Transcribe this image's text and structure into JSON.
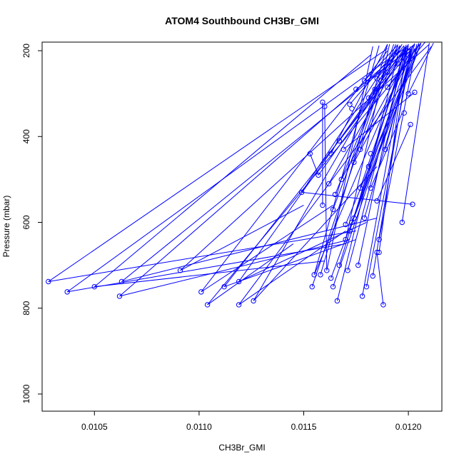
{
  "chart_data": {
    "type": "line",
    "title": "ATOM4 Southbound CH3Br_GMI",
    "xlabel": "CH3Br_GMI",
    "ylabel": "Pressure (mbar)",
    "xlim": [
      0.01025,
      0.01216
    ],
    "ylim": [
      1040,
      180
    ],
    "y_inverted": true,
    "x_ticks": [
      0.0105,
      0.011,
      0.0115,
      0.012
    ],
    "x_tick_labels": [
      "0.0105",
      "0.0110",
      "0.0115",
      "0.0120"
    ],
    "y_ticks": [
      200,
      400,
      600,
      800,
      1000
    ],
    "y_tick_labels": [
      "200",
      "400",
      "600",
      "800",
      "1000"
    ],
    "series_color": "#0000ff",
    "grid": false,
    "points": [
      [
        0.01028,
        738
      ],
      [
        0.01037,
        762
      ],
      [
        0.0105,
        750
      ],
      [
        0.01063,
        738
      ],
      [
        0.01062,
        772
      ],
      [
        0.01091,
        712
      ],
      [
        0.01101,
        762
      ],
      [
        0.01104,
        792
      ],
      [
        0.01112,
        750
      ],
      [
        0.01119,
        738
      ],
      [
        0.01119,
        792
      ],
      [
        0.01126,
        783
      ],
      [
        0.01149,
        530
      ],
      [
        0.01153,
        440
      ],
      [
        0.01154,
        750
      ],
      [
        0.01155,
        722
      ],
      [
        0.01157,
        490
      ],
      [
        0.01158,
        722
      ],
      [
        0.01159,
        560
      ],
      [
        0.01159,
        320
      ],
      [
        0.0116,
        330
      ],
      [
        0.01161,
        712
      ],
      [
        0.01162,
        510
      ],
      [
        0.01163,
        730
      ],
      [
        0.01163,
        440
      ],
      [
        0.01164,
        570
      ],
      [
        0.01164,
        750
      ],
      [
        0.01165,
        535
      ],
      [
        0.01166,
        783
      ],
      [
        0.01167,
        700
      ],
      [
        0.01167,
        410
      ],
      [
        0.01168,
        500
      ],
      [
        0.01169,
        430
      ],
      [
        0.0117,
        605
      ],
      [
        0.0117,
        640
      ],
      [
        0.01171,
        712
      ],
      [
        0.01172,
        620
      ],
      [
        0.01172,
        325
      ],
      [
        0.01173,
        600
      ],
      [
        0.01173,
        335
      ],
      [
        0.01174,
        460
      ],
      [
        0.01174,
        590
      ],
      [
        0.01175,
        290
      ],
      [
        0.01176,
        700
      ],
      [
        0.01177,
        520
      ],
      [
        0.01177,
        430
      ],
      [
        0.01178,
        772
      ],
      [
        0.01179,
        590
      ],
      [
        0.01179,
        270
      ],
      [
        0.0118,
        750
      ],
      [
        0.01181,
        310
      ],
      [
        0.01181,
        470
      ],
      [
        0.01182,
        440
      ],
      [
        0.01182,
        520
      ],
      [
        0.01183,
        725
      ],
      [
        0.01184,
        290
      ],
      [
        0.01185,
        550
      ],
      [
        0.01185,
        670
      ],
      [
        0.01186,
        670
      ],
      [
        0.01186,
        640
      ],
      [
        0.01187,
        270
      ],
      [
        0.01188,
        792
      ],
      [
        0.01189,
        430
      ],
      [
        0.0119,
        285
      ],
      [
        0.01197,
        600
      ],
      [
        0.01198,
        345
      ],
      [
        0.012,
        300
      ],
      [
        0.01201,
        372
      ],
      [
        0.01202,
        558
      ],
      [
        0.01203,
        297
      ],
      [
        0.012,
        210
      ],
      [
        0.01195,
        230
      ],
      [
        0.0119,
        250
      ],
      [
        0.01185,
        265
      ]
    ],
    "segments": [
      [
        0.01028,
        738,
        0.0119,
        195
      ],
      [
        0.01028,
        738,
        0.01175,
        620
      ],
      [
        0.01037,
        762,
        0.01196,
        200
      ],
      [
        0.01037,
        762,
        0.0117,
        650
      ],
      [
        0.0105,
        750,
        0.01182,
        210
      ],
      [
        0.0105,
        750,
        0.0116,
        690
      ],
      [
        0.01063,
        738,
        0.01203,
        185
      ],
      [
        0.01063,
        738,
        0.01185,
        590
      ],
      [
        0.01062,
        772,
        0.01199,
        190
      ],
      [
        0.01062,
        772,
        0.01172,
        640
      ],
      [
        0.01091,
        712,
        0.0121,
        185
      ],
      [
        0.01091,
        712,
        0.0115,
        560
      ],
      [
        0.01101,
        762,
        0.0119,
        200
      ],
      [
        0.01101,
        762,
        0.01164,
        560
      ],
      [
        0.01104,
        792,
        0.01208,
        180
      ],
      [
        0.01104,
        792,
        0.01145,
        650
      ],
      [
        0.01112,
        750,
        0.01202,
        192
      ],
      [
        0.01112,
        750,
        0.01175,
        640
      ],
      [
        0.01119,
        738,
        0.01198,
        195
      ],
      [
        0.01119,
        738,
        0.0118,
        600
      ],
      [
        0.01119,
        792,
        0.01211,
        190
      ],
      [
        0.01119,
        792,
        0.0117,
        620
      ],
      [
        0.01126,
        783,
        0.01197,
        185
      ],
      [
        0.01126,
        783,
        0.01185,
        470
      ],
      [
        0.01149,
        530,
        0.01195,
        190
      ],
      [
        0.01149,
        530,
        0.01202,
        558
      ],
      [
        0.01153,
        440,
        0.01157,
        490
      ],
      [
        0.01154,
        750,
        0.01193,
        185
      ],
      [
        0.01155,
        722,
        0.012,
        210
      ],
      [
        0.01157,
        490,
        0.012,
        195
      ],
      [
        0.01159,
        320,
        0.01159,
        560
      ],
      [
        0.0116,
        330,
        0.01161,
        712
      ],
      [
        0.01162,
        510,
        0.01199,
        190
      ],
      [
        0.01163,
        730,
        0.01205,
        182
      ],
      [
        0.01163,
        440,
        0.0119,
        185
      ],
      [
        0.01164,
        570,
        0.01187,
        270
      ],
      [
        0.01164,
        750,
        0.01203,
        195
      ],
      [
        0.01166,
        783,
        0.01196,
        188
      ],
      [
        0.01167,
        700,
        0.01199,
        190
      ],
      [
        0.01167,
        410,
        0.012,
        190
      ],
      [
        0.01168,
        500,
        0.01203,
        183
      ],
      [
        0.01169,
        430,
        0.01203,
        297
      ],
      [
        0.0117,
        605,
        0.01206,
        182
      ],
      [
        0.01171,
        712,
        0.01199,
        196
      ],
      [
        0.01172,
        325,
        0.01196,
        190
      ],
      [
        0.01173,
        600,
        0.01202,
        190
      ],
      [
        0.01174,
        460,
        0.01204,
        190
      ],
      [
        0.01175,
        290,
        0.01201,
        195
      ],
      [
        0.01176,
        700,
        0.01198,
        190
      ],
      [
        0.01177,
        520,
        0.012,
        190
      ],
      [
        0.01178,
        772,
        0.012,
        185
      ],
      [
        0.01179,
        590,
        0.01203,
        185
      ],
      [
        0.0118,
        750,
        0.01202,
        188
      ],
      [
        0.01181,
        470,
        0.01205,
        185
      ],
      [
        0.01182,
        520,
        0.01197,
        345
      ],
      [
        0.01183,
        725,
        0.01201,
        190
      ],
      [
        0.01185,
        550,
        0.01201,
        372
      ],
      [
        0.01186,
        640,
        0.01204,
        185
      ],
      [
        0.01188,
        792,
        0.01185,
        670
      ],
      [
        0.01189,
        430,
        0.01202,
        188
      ],
      [
        0.01186,
        670,
        0.01199,
        190
      ],
      [
        0.01197,
        600,
        0.0121,
        182
      ],
      [
        0.0119,
        285,
        0.01206,
        182
      ],
      [
        0.01185,
        265,
        0.01198,
        188
      ],
      [
        0.012,
        300,
        0.01212,
        182
      ],
      [
        0.01181,
        310,
        0.01196,
        188
      ],
      [
        0.01184,
        290,
        0.012,
        186
      ],
      [
        0.01179,
        270,
        0.01195,
        186
      ],
      [
        0.01177,
        430,
        0.01195,
        186
      ],
      [
        0.01174,
        590,
        0.01206,
        183
      ],
      [
        0.01172,
        620,
        0.01199,
        186
      ],
      [
        0.0117,
        640,
        0.01191,
        185
      ],
      [
        0.01165,
        535,
        0.01194,
        185
      ],
      [
        0.01158,
        722,
        0.0119,
        186
      ],
      [
        0.01155,
        722,
        0.01186,
        188
      ],
      [
        0.01161,
        712,
        0.01183,
        190
      ]
    ]
  }
}
